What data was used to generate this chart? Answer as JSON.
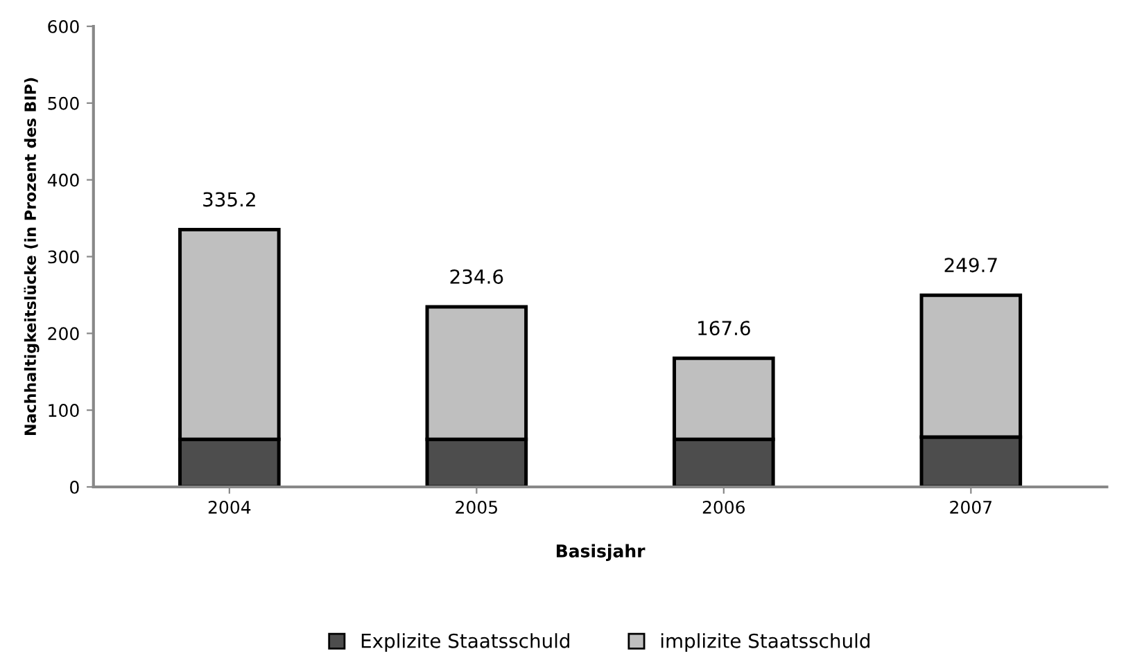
{
  "chart_data": {
    "type": "bar",
    "stacked": true,
    "categories": [
      "2004",
      "2005",
      "2006",
      "2007"
    ],
    "series": [
      {
        "name": "Explizite Staatsschuld",
        "color": "#4d4d4d",
        "values": [
          62,
          62,
          62,
          65
        ]
      },
      {
        "name": "implizite Staatsschuld",
        "color": "#bfbfbf",
        "values": [
          273.2,
          172.6,
          105.6,
          184.7
        ]
      }
    ],
    "totals": [
      "335.2",
      "234.6",
      "167.6",
      "249.7"
    ],
    "xlabel": "Basisjahr",
    "ylabel": "Nachhaltigkeitslücke (in Prozent des BIP)",
    "ylim": [
      0,
      600
    ],
    "yticks": [
      0,
      100,
      200,
      300,
      400,
      500,
      600
    ],
    "grid": false,
    "legend": "bottom"
  }
}
